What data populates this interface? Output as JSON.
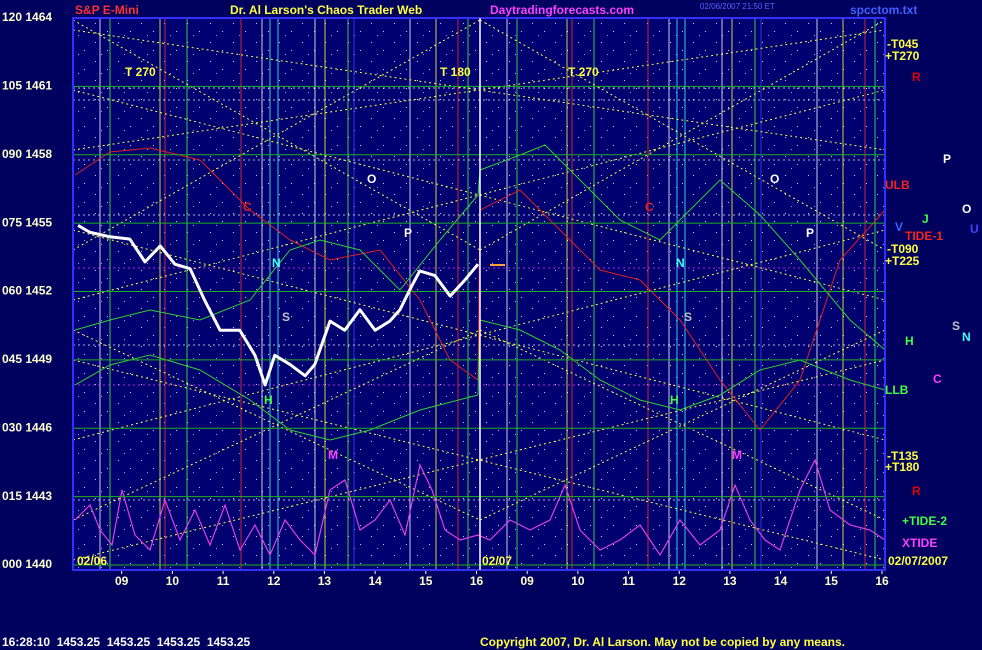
{
  "chart_data": {
    "type": "line",
    "title": "Dr. Al Larson's Chaos Trader Web",
    "instrument": "S&P E-Mini",
    "site": "Daytradingforecasts.com",
    "timestamp": "02/06/2007 21:50 ET",
    "file": "spcctom.txt",
    "status": "16:28:10  1453.25  1453.25  1453.25  1453.25",
    "copyright": "Copyright 2007, Dr. Al Larson. May not be copied by any means.",
    "x": [
      0.14,
      0.37,
      0.77,
      1.16,
      1.46,
      1.76,
      2.05,
      2.35,
      2.64,
      2.94,
      3.33,
      3.63,
      3.83,
      4.02,
      4.32,
      4.62,
      4.81,
      5.11,
      5.4,
      5.7,
      6.0,
      6.29,
      6.49,
      6.69,
      6.88,
      7.18,
      7.48,
      7.77,
      8.03
    ],
    "values": [
      1454.9,
      1454.6,
      1454.4,
      1454.3,
      1453.3,
      1454.0,
      1453.2,
      1453.0,
      1451.6,
      1450.3,
      1450.3,
      1449.2,
      1447.9,
      1449.2,
      1448.8,
      1448.3,
      1448.8,
      1450.7,
      1450.3,
      1451.2,
      1450.3,
      1450.7,
      1451.2,
      1452.1,
      1452.9,
      1452.7,
      1451.8,
      1452.5,
      1453.2
    ],
    "color": "#ffffff",
    "xlim": [
      0,
      16
    ],
    "xticks": [
      {
        "value": 1,
        "label": "09"
      },
      {
        "value": 2,
        "label": "10"
      },
      {
        "value": 3,
        "label": "11"
      },
      {
        "value": 4,
        "label": "12"
      },
      {
        "value": 5,
        "label": "13"
      },
      {
        "value": 6,
        "label": "14"
      },
      {
        "value": 7,
        "label": "15"
      },
      {
        "value": 8,
        "label": "16"
      },
      {
        "value": 9,
        "label": "09"
      },
      {
        "value": 10,
        "label": "10"
      },
      {
        "value": 11,
        "label": "11"
      },
      {
        "value": 12,
        "label": "12"
      },
      {
        "value": 13,
        "label": "13"
      },
      {
        "value": 14,
        "label": "14"
      },
      {
        "value": 15,
        "label": "15"
      },
      {
        "value": 16,
        "label": "16"
      }
    ],
    "ylim": [
      1440,
      1464
    ],
    "yticks": [
      {
        "value": 1440,
        "label": "000 1440"
      },
      {
        "value": 1443,
        "label": "015 1443"
      },
      {
        "value": 1446,
        "label": "030 1446"
      },
      {
        "value": 1449,
        "label": "045 1449"
      },
      {
        "value": 1452,
        "label": "060 1452"
      },
      {
        "value": 1455,
        "label": "075 1455"
      },
      {
        "value": 1458,
        "label": "090 1458"
      },
      {
        "value": 1461,
        "label": "105 1461"
      },
      {
        "value": 1464,
        "label": "120 1464"
      }
    ],
    "grid": true,
    "annotations": [
      "T 270",
      "T 180",
      "T 270",
      "-T045",
      "+T270",
      "R",
      "ULB",
      "-T090",
      "+T225",
      "TIDE-1",
      "LLB",
      "-T135",
      "+T180",
      "R",
      "+TIDE-2",
      "XTIDE",
      "02/06",
      "02/07",
      "02/07/2007",
      "C",
      "N",
      "S",
      "P",
      "O",
      "M",
      "H",
      "C",
      "N",
      "S",
      "P",
      "O",
      "M",
      "H",
      "P",
      "O",
      "V",
      "J",
      "U",
      "H",
      "S",
      "N",
      "C"
    ]
  }
}
